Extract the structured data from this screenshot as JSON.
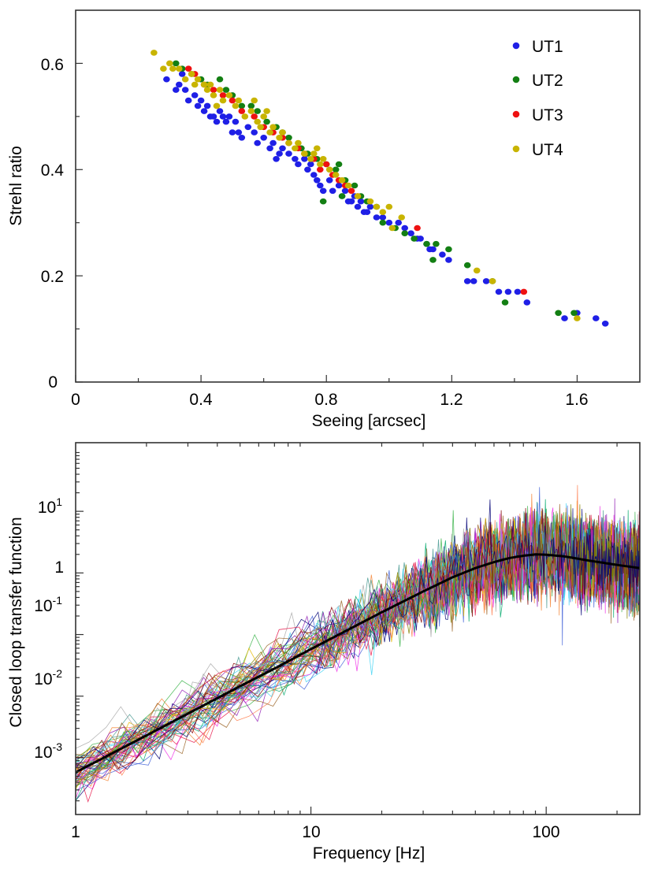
{
  "charts": [
    {
      "type": "scatter",
      "xlabel": "Seeing [arcsec]",
      "ylabel": "Strehl ratio",
      "xlim": [
        0,
        1.8
      ],
      "ylim": [
        0,
        0.7
      ],
      "xticks": [
        "0",
        "0.4",
        "0.8",
        "1.2",
        "1.6"
      ],
      "xtick_values": [
        0,
        0.4,
        0.8,
        1.2,
        1.6
      ],
      "xminor_values": [
        0.2,
        0.6,
        1.0,
        1.4
      ],
      "yticks": [
        "0",
        "0.2",
        "0.4",
        "0.6"
      ],
      "ytick_values": [
        0,
        0.2,
        0.4,
        0.6
      ],
      "yminor_values": [
        0.1,
        0.3,
        0.5
      ],
      "legend_position": "top-right",
      "series": [
        {
          "name": "UT1",
          "color": "#1f1fe6",
          "points": [
            [
              0.29,
              0.57
            ],
            [
              0.32,
              0.55
            ],
            [
              0.33,
              0.56
            ],
            [
              0.35,
              0.55
            ],
            [
              0.36,
              0.53
            ],
            [
              0.38,
              0.54
            ],
            [
              0.39,
              0.52
            ],
            [
              0.41,
              0.51
            ],
            [
              0.42,
              0.52
            ],
            [
              0.43,
              0.5
            ],
            [
              0.44,
              0.5
            ],
            [
              0.45,
              0.49
            ],
            [
              0.46,
              0.51
            ],
            [
              0.47,
              0.5
            ],
            [
              0.48,
              0.49
            ],
            [
              0.49,
              0.5
            ],
            [
              0.5,
              0.47
            ],
            [
              0.51,
              0.49
            ],
            [
              0.53,
              0.46
            ],
            [
              0.55,
              0.48
            ],
            [
              0.57,
              0.47
            ],
            [
              0.58,
              0.45
            ],
            [
              0.6,
              0.46
            ],
            [
              0.62,
              0.44
            ],
            [
              0.63,
              0.45
            ],
            [
              0.65,
              0.43
            ],
            [
              0.66,
              0.44
            ],
            [
              0.68,
              0.43
            ],
            [
              0.7,
              0.42
            ],
            [
              0.71,
              0.41
            ],
            [
              0.73,
              0.42
            ],
            [
              0.74,
              0.4
            ],
            [
              0.76,
              0.39
            ],
            [
              0.77,
              0.38
            ],
            [
              0.78,
              0.37
            ],
            [
              0.79,
              0.36
            ],
            [
              0.81,
              0.38
            ],
            [
              0.82,
              0.36
            ],
            [
              0.84,
              0.37
            ],
            [
              0.85,
              0.35
            ],
            [
              0.86,
              0.36
            ],
            [
              0.88,
              0.34
            ],
            [
              0.89,
              0.35
            ],
            [
              0.9,
              0.33
            ],
            [
              0.91,
              0.34
            ],
            [
              0.93,
              0.32
            ],
            [
              0.94,
              0.33
            ],
            [
              0.96,
              0.31
            ],
            [
              0.98,
              0.31
            ],
            [
              1.0,
              0.3
            ],
            [
              1.03,
              0.3
            ],
            [
              1.05,
              0.29
            ],
            [
              1.07,
              0.28
            ],
            [
              1.1,
              0.27
            ],
            [
              1.12,
              0.26
            ],
            [
              1.13,
              0.25
            ],
            [
              1.14,
              0.25
            ],
            [
              1.17,
              0.24
            ],
            [
              1.19,
              0.23
            ],
            [
              1.25,
              0.19
            ],
            [
              1.27,
              0.19
            ],
            [
              1.31,
              0.19
            ],
            [
              1.35,
              0.17
            ],
            [
              1.38,
              0.17
            ],
            [
              1.41,
              0.17
            ],
            [
              1.44,
              0.15
            ],
            [
              1.56,
              0.12
            ],
            [
              1.6,
              0.13
            ],
            [
              1.66,
              0.12
            ],
            [
              1.69,
              0.11
            ],
            [
              0.34,
              0.58
            ],
            [
              0.4,
              0.53
            ],
            [
              0.52,
              0.47
            ],
            [
              0.64,
              0.42
            ],
            [
              0.75,
              0.41
            ],
            [
              0.87,
              0.34
            ],
            [
              0.92,
              0.32
            ],
            [
              1.09,
              0.27
            ]
          ]
        },
        {
          "name": "UT2",
          "color": "#137f13",
          "points": [
            [
              0.32,
              0.6
            ],
            [
              0.34,
              0.59
            ],
            [
              0.37,
              0.58
            ],
            [
              0.4,
              0.57
            ],
            [
              0.42,
              0.56
            ],
            [
              0.46,
              0.57
            ],
            [
              0.48,
              0.55
            ],
            [
              0.5,
              0.54
            ],
            [
              0.53,
              0.52
            ],
            [
              0.56,
              0.52
            ],
            [
              0.58,
              0.51
            ],
            [
              0.61,
              0.49
            ],
            [
              0.64,
              0.48
            ],
            [
              0.66,
              0.47
            ],
            [
              0.68,
              0.46
            ],
            [
              0.72,
              0.44
            ],
            [
              0.74,
              0.43
            ],
            [
              0.77,
              0.42
            ],
            [
              0.8,
              0.41
            ],
            [
              0.83,
              0.4
            ],
            [
              0.84,
              0.41
            ],
            [
              0.86,
              0.38
            ],
            [
              0.89,
              0.37
            ],
            [
              0.91,
              0.35
            ],
            [
              0.93,
              0.34
            ],
            [
              0.96,
              0.33
            ],
            [
              0.98,
              0.3
            ],
            [
              1.02,
              0.29
            ],
            [
              1.05,
              0.28
            ],
            [
              1.08,
              0.27
            ],
            [
              1.12,
              0.26
            ],
            [
              1.15,
              0.26
            ],
            [
              1.19,
              0.25
            ],
            [
              1.25,
              0.22
            ],
            [
              1.33,
              0.19
            ],
            [
              1.37,
              0.15
            ],
            [
              1.54,
              0.13
            ],
            [
              1.59,
              0.13
            ],
            [
              0.79,
              0.34
            ],
            [
              0.85,
              0.35
            ],
            [
              1.14,
              0.23
            ]
          ]
        },
        {
          "name": "UT3",
          "color": "#ee1111",
          "points": [
            [
              0.36,
              0.59
            ],
            [
              0.38,
              0.58
            ],
            [
              0.41,
              0.56
            ],
            [
              0.44,
              0.55
            ],
            [
              0.47,
              0.54
            ],
            [
              0.5,
              0.53
            ],
            [
              0.53,
              0.51
            ],
            [
              0.57,
              0.5
            ],
            [
              0.6,
              0.48
            ],
            [
              0.63,
              0.47
            ],
            [
              0.66,
              0.46
            ],
            [
              0.68,
              0.45
            ],
            [
              0.71,
              0.44
            ],
            [
              0.73,
              0.43
            ],
            [
              0.76,
              0.42
            ],
            [
              0.78,
              0.4
            ],
            [
              0.8,
              0.41
            ],
            [
              0.82,
              0.39
            ],
            [
              0.84,
              0.38
            ],
            [
              0.86,
              0.37
            ],
            [
              0.88,
              0.36
            ],
            [
              0.9,
              0.35
            ],
            [
              1.09,
              0.29
            ],
            [
              1.43,
              0.17
            ]
          ]
        },
        {
          "name": "UT4",
          "color": "#c8b400",
          "points": [
            [
              0.25,
              0.62
            ],
            [
              0.28,
              0.59
            ],
            [
              0.3,
              0.6
            ],
            [
              0.31,
              0.59
            ],
            [
              0.33,
              0.59
            ],
            [
              0.35,
              0.57
            ],
            [
              0.37,
              0.58
            ],
            [
              0.38,
              0.56
            ],
            [
              0.39,
              0.57
            ],
            [
              0.41,
              0.56
            ],
            [
              0.42,
              0.55
            ],
            [
              0.43,
              0.56
            ],
            [
              0.44,
              0.54
            ],
            [
              0.46,
              0.55
            ],
            [
              0.47,
              0.53
            ],
            [
              0.49,
              0.54
            ],
            [
              0.51,
              0.52
            ],
            [
              0.52,
              0.53
            ],
            [
              0.54,
              0.5
            ],
            [
              0.56,
              0.51
            ],
            [
              0.58,
              0.49
            ],
            [
              0.59,
              0.48
            ],
            [
              0.6,
              0.5
            ],
            [
              0.62,
              0.47
            ],
            [
              0.63,
              0.48
            ],
            [
              0.65,
              0.46
            ],
            [
              0.66,
              0.47
            ],
            [
              0.68,
              0.45
            ],
            [
              0.7,
              0.44
            ],
            [
              0.71,
              0.45
            ],
            [
              0.73,
              0.43
            ],
            [
              0.75,
              0.42
            ],
            [
              0.76,
              0.43
            ],
            [
              0.78,
              0.41
            ],
            [
              0.79,
              0.42
            ],
            [
              0.81,
              0.4
            ],
            [
              0.83,
              0.39
            ],
            [
              0.85,
              0.38
            ],
            [
              0.87,
              0.37
            ],
            [
              0.9,
              0.35
            ],
            [
              0.94,
              0.34
            ],
            [
              0.96,
              0.33
            ],
            [
              0.98,
              0.32
            ],
            [
              1.0,
              0.33
            ],
            [
              1.01,
              0.29
            ],
            [
              1.04,
              0.31
            ],
            [
              1.28,
              0.21
            ],
            [
              1.33,
              0.19
            ],
            [
              1.6,
              0.12
            ],
            [
              0.57,
              0.53
            ],
            [
              0.61,
              0.51
            ],
            [
              0.77,
              0.44
            ],
            [
              0.45,
              0.52
            ]
          ]
        }
      ]
    },
    {
      "type": "line",
      "scale": "log-log",
      "xlabel": "Frequency [Hz]",
      "ylabel": "Closed loop transfer function",
      "xlim": [
        1,
        250
      ],
      "ylim": [
        0.00012,
        130
      ],
      "xticks": [
        "1",
        "10",
        "100"
      ],
      "xtick_values": [
        1,
        10,
        100
      ],
      "yticks": [
        {
          "base": "10",
          "exp": "-3",
          "value": 0.001
        },
        {
          "base": "10",
          "exp": "-2",
          "value": 0.01
        },
        {
          "base": "10",
          "exp": "-1",
          "value": 0.1
        },
        {
          "base": "1",
          "exp": "",
          "value": 1
        },
        {
          "base": "10",
          "exp": "1",
          "value": 10
        }
      ],
      "model_color": "#000000",
      "model": {
        "x": [
          1,
          1.5,
          2,
          3,
          5,
          7,
          10,
          15,
          20,
          30,
          40,
          50,
          60,
          70,
          80,
          90,
          100,
          120,
          150,
          200,
          250
        ],
        "y": [
          0.00058,
          0.0013,
          0.0023,
          0.0052,
          0.0145,
          0.028,
          0.058,
          0.13,
          0.23,
          0.5,
          0.85,
          1.2,
          1.5,
          1.75,
          1.9,
          2.0,
          1.98,
          1.85,
          1.6,
          1.35,
          1.2
        ]
      },
      "realizations": {
        "count": 60,
        "noise_dex_low_freq": 0.22,
        "noise_dex_high_freq": 0.28,
        "colors": [
          "#e6194b",
          "#3cb44b",
          "#4363d8",
          "#f58231",
          "#911eb4",
          "#42d4f4",
          "#f032e6",
          "#9a6324",
          "#469990",
          "#800000",
          "#808000",
          "#000075",
          "#a9a9a9",
          "#e6b800",
          "#00a86b",
          "#ff7f50"
        ]
      }
    }
  ]
}
